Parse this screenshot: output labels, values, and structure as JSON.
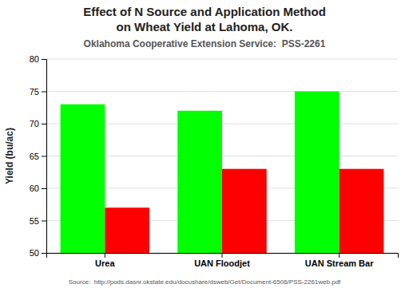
{
  "chart_data": {
    "type": "bar",
    "title": [
      "Effect of N Source and Application Method",
      "on Wheat Yield at Lahoma, OK."
    ],
    "subtitle": "Oklahoma Cooperative Extension Service:  PSS-2261",
    "annotations": [
      "Source:  http://pods.dasnr.okstate.edu/docushare/dsweb/Get/Document-6506/PSS-2261web.pdf"
    ],
    "y_label": "Yield (bu/ac)",
    "categories": [
      "Urea",
      "UAN Floodjet",
      "UAN Stream Bar"
    ],
    "series": [
      {
        "color": "#00ff00",
        "values": [
          73,
          72,
          75
        ]
      },
      {
        "color": "#ff0000",
        "values": [
          57,
          63,
          63
        ]
      }
    ],
    "ylim": [
      50,
      80
    ],
    "yticks": [
      50,
      55,
      60,
      65,
      70,
      75,
      80
    ],
    "grid": true
  }
}
